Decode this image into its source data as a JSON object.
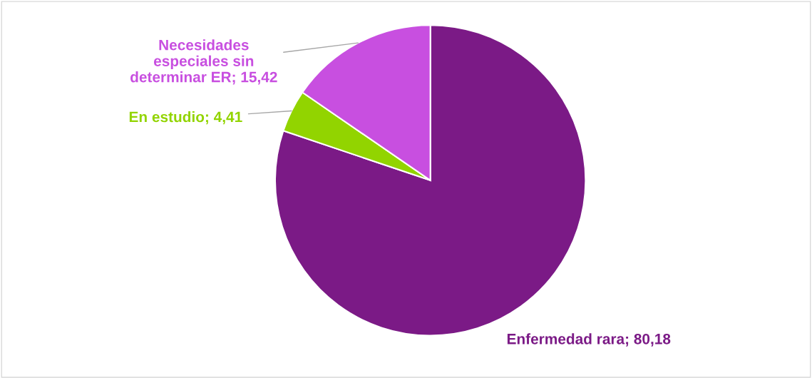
{
  "chart_data": {
    "type": "pie",
    "categories": [
      "Enfermedad rara",
      "En estudio",
      "Necesidades especiales sin determinar ER"
    ],
    "values": [
      80.18,
      4.41,
      15.42
    ],
    "value_labels": [
      "80,18",
      "4,41",
      "15,42"
    ],
    "colors": [
      "#7b1a86",
      "#92d400",
      "#c84fe0"
    ],
    "legend": false
  }
}
